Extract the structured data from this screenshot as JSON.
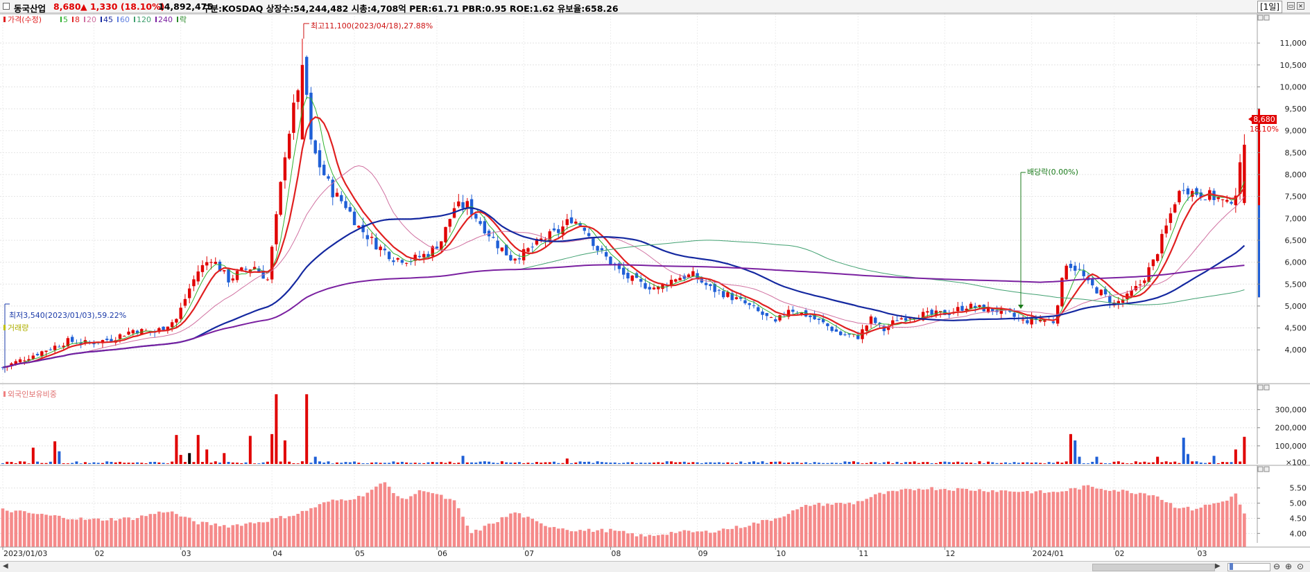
{
  "header": {
    "name": "동국산업",
    "price": "8,680",
    "change": "▲ 1,330 (18.10%)",
    "volume": "14,892,475",
    "info": "구분:KOSDAQ  상장수:54,244,482  시총:4,708억  PER:61.71  PBR:0.95  ROE:1.62  유보율:658.26",
    "period": "[1일]"
  },
  "legend": {
    "price_label": "가격(수정)",
    "items": [
      {
        "label": "5",
        "color": "#2fb12f"
      },
      {
        "label": "8",
        "color": "#e02020"
      },
      {
        "label": "20",
        "color": "#d070a0"
      },
      {
        "label": "45",
        "color": "#1428a0"
      },
      {
        "label": "60",
        "color": "#6080e0"
      },
      {
        "label": "120",
        "color": "#40a070"
      },
      {
        "label": "240",
        "color": "#7a20a0"
      },
      {
        "label": "락",
        "color": "#2a8a2a"
      }
    ]
  },
  "annotations": {
    "high": "최고11,100(2023/04/18),27.88%",
    "low": "최저3,540(2023/01/03),59.22%",
    "dividend": "배당락(0.00%)",
    "last_price": "8,680",
    "last_change": "18.10%"
  },
  "panels": {
    "volume_title": "거래량",
    "foreign_title": "외국인보유비중"
  },
  "chart_data": [
    {
      "type": "candlestick",
      "title": "가격(수정)",
      "y_ticks": [
        4000,
        4500,
        5000,
        5500,
        6000,
        6500,
        7000,
        7500,
        8000,
        8500,
        9000,
        9500,
        10000,
        10500,
        11000
      ],
      "ylim": [
        3450,
        11350
      ],
      "x_labels": [
        "2023/01/03",
        "02",
        "03",
        "04",
        "05",
        "06",
        "07",
        "08",
        "09",
        "10",
        "11",
        "12",
        "2024/01",
        "02",
        "03"
      ],
      "label_index": [
        0,
        21,
        41,
        62,
        81,
        100,
        120,
        140,
        160,
        178,
        197,
        217,
        237,
        256,
        275
      ],
      "grid": true,
      "trend": [
        [
          0,
          3600
        ],
        [
          5,
          3800
        ],
        [
          10,
          4000
        ],
        [
          15,
          4200
        ],
        [
          20,
          4150
        ],
        [
          25,
          4250
        ],
        [
          30,
          4450
        ],
        [
          35,
          4400
        ],
        [
          40,
          4700
        ],
        [
          43,
          5400
        ],
        [
          45,
          5800
        ],
        [
          48,
          6100
        ],
        [
          52,
          5600
        ],
        [
          55,
          5800
        ],
        [
          58,
          5900
        ],
        [
          61,
          5600
        ],
        [
          63,
          7000
        ],
        [
          65,
          8500
        ],
        [
          67,
          9500
        ],
        [
          69,
          10500
        ],
        [
          70,
          9800
        ],
        [
          71,
          8700
        ],
        [
          73,
          8200
        ],
        [
          76,
          7600
        ],
        [
          79,
          7300
        ],
        [
          82,
          6800
        ],
        [
          86,
          6400
        ],
        [
          90,
          6100
        ],
        [
          94,
          6050
        ],
        [
          98,
          6200
        ],
        [
          101,
          6500
        ],
        [
          104,
          7250
        ],
        [
          107,
          7300
        ],
        [
          110,
          6900
        ],
        [
          114,
          6400
        ],
        [
          117,
          6100
        ],
        [
          120,
          6200
        ],
        [
          124,
          6500
        ],
        [
          128,
          6700
        ],
        [
          131,
          7000
        ],
        [
          134,
          6800
        ],
        [
          137,
          6300
        ],
        [
          140,
          6000
        ],
        [
          143,
          5700
        ],
        [
          147,
          5500
        ],
        [
          151,
          5400
        ],
        [
          155,
          5650
        ],
        [
          159,
          5700
        ],
        [
          163,
          5400
        ],
        [
          167,
          5250
        ],
        [
          171,
          5050
        ],
        [
          175,
          4800
        ],
        [
          178,
          4600
        ],
        [
          181,
          4950
        ],
        [
          185,
          4800
        ],
        [
          189,
          4600
        ],
        [
          193,
          4350
        ],
        [
          197,
          4300
        ],
        [
          200,
          4700
        ],
        [
          203,
          4450
        ],
        [
          206,
          4700
        ],
        [
          210,
          4800
        ],
        [
          214,
          4800
        ],
        [
          218,
          4850
        ],
        [
          222,
          5000
        ],
        [
          225,
          4950
        ],
        [
          229,
          4900
        ],
        [
          232,
          4800
        ],
        [
          235,
          4650
        ],
        [
          238,
          4700
        ],
        [
          242,
          4650
        ],
        [
          245,
          6000
        ],
        [
          248,
          5800
        ],
        [
          250,
          5500
        ],
        [
          253,
          5300
        ],
        [
          256,
          5050
        ],
        [
          259,
          5200
        ],
        [
          262,
          5500
        ],
        [
          265,
          6000
        ],
        [
          268,
          6800
        ],
        [
          270,
          7400
        ],
        [
          272,
          7750
        ],
        [
          274,
          7600
        ],
        [
          277,
          7550
        ],
        [
          280,
          7450
        ],
        [
          282,
          7300
        ],
        [
          284,
          7600
        ],
        [
          286,
          8680
        ]
      ],
      "ma_periods": [
        5,
        8,
        20,
        45,
        120,
        240
      ],
      "ma_colors": [
        "#2fb12f",
        "#e02020",
        "#d070a0",
        "#1428a0",
        "#40a070",
        "#7a20a0"
      ],
      "ma_widths": [
        1,
        2.2,
        1,
        2.2,
        1,
        2
      ],
      "high_marker": {
        "value": 11100,
        "date": "2023/04/18"
      },
      "low_marker": {
        "value": 3540,
        "date": "2023/01/03"
      }
    },
    {
      "type": "bar",
      "title": "거래량",
      "y_ticks": [
        100000,
        200000,
        300000
      ],
      "ylim": [
        0,
        390000
      ],
      "spikes": [
        [
          7,
          90000
        ],
        [
          12,
          125000
        ],
        [
          13,
          70000
        ],
        [
          40,
          160000
        ],
        [
          41,
          50000
        ],
        [
          43,
          60000
        ],
        [
          45,
          160000
        ],
        [
          47,
          80000
        ],
        [
          51,
          60000
        ],
        [
          57,
          155000
        ],
        [
          62,
          165000
        ],
        [
          63,
          385000
        ],
        [
          65,
          130000
        ],
        [
          70,
          385000
        ],
        [
          72,
          40000
        ],
        [
          106,
          45000
        ],
        [
          130,
          30000
        ],
        [
          246,
          165000
        ],
        [
          247,
          130000
        ],
        [
          248,
          40000
        ],
        [
          252,
          40000
        ],
        [
          266,
          40000
        ],
        [
          272,
          145000
        ],
        [
          273,
          55000
        ],
        [
          279,
          45000
        ],
        [
          284,
          80000
        ],
        [
          286,
          150000
        ]
      ]
    },
    {
      "type": "bar",
      "title": "외국인보유비중",
      "y_ticks": [
        4.0,
        4.5,
        5.0,
        5.5
      ],
      "ylim": [
        3.55,
        5.95
      ],
      "trend": [
        [
          0,
          4.78
        ],
        [
          10,
          4.6
        ],
        [
          20,
          4.45
        ],
        [
          30,
          4.5
        ],
        [
          38,
          4.75
        ],
        [
          45,
          4.35
        ],
        [
          52,
          4.25
        ],
        [
          60,
          4.4
        ],
        [
          68,
          4.65
        ],
        [
          75,
          5.05
        ],
        [
          82,
          5.2
        ],
        [
          88,
          5.68
        ],
        [
          92,
          5.1
        ],
        [
          97,
          5.45
        ],
        [
          104,
          5.05
        ],
        [
          108,
          4.0
        ],
        [
          118,
          4.7
        ],
        [
          124,
          4.3
        ],
        [
          132,
          4.1
        ],
        [
          140,
          4.1
        ],
        [
          148,
          3.9
        ],
        [
          155,
          4.05
        ],
        [
          162,
          4.05
        ],
        [
          170,
          4.22
        ],
        [
          178,
          4.5
        ],
        [
          186,
          4.95
        ],
        [
          196,
          5.0
        ],
        [
          202,
          5.3
        ],
        [
          212,
          5.5
        ],
        [
          222,
          5.45
        ],
        [
          232,
          5.4
        ],
        [
          242,
          5.35
        ],
        [
          250,
          5.55
        ],
        [
          258,
          5.4
        ],
        [
          265,
          5.3
        ],
        [
          270,
          4.9
        ],
        [
          274,
          4.8
        ],
        [
          278,
          4.95
        ],
        [
          281,
          5.05
        ],
        [
          284,
          5.28
        ],
        [
          286,
          4.65
        ]
      ]
    }
  ]
}
